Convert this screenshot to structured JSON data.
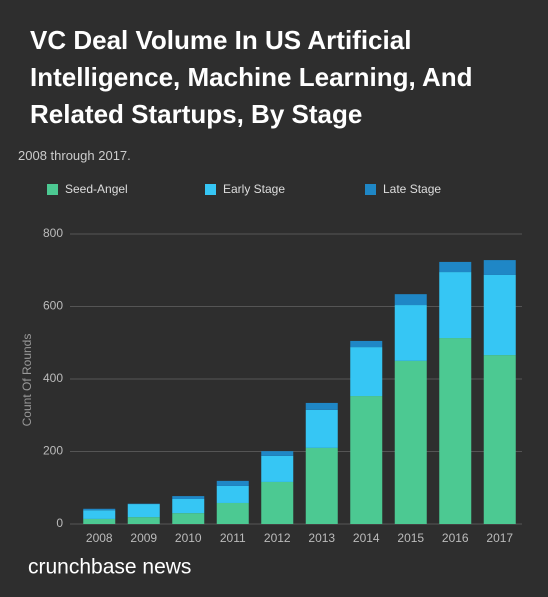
{
  "chart_data": {
    "type": "stacked_bar",
    "title": "VC Deal Volume In US Artificial Intelligence, Machine Learning, And Related Startups, By Stage",
    "subtitle": "2008 through 2017.",
    "y_label": "Count Of Rounds",
    "source": "crunchbase news",
    "categories": [
      "2008",
      "2009",
      "2010",
      "2011",
      "2012",
      "2013",
      "2014",
      "2015",
      "2016",
      "2017"
    ],
    "series": [
      {
        "name": "Seed-Angel",
        "color": "#4cc992",
        "values": [
          14,
          19,
          30,
          58,
          116,
          210,
          353,
          450,
          513,
          466
        ]
      },
      {
        "name": "Early Stage",
        "color": "#36c6f4",
        "values": [
          24,
          36,
          39,
          47,
          72,
          105,
          135,
          154,
          182,
          221
        ]
      },
      {
        "name": "Late Stage",
        "color": "#1f87c6",
        "values": [
          4,
          1,
          8,
          14,
          13,
          19,
          17,
          30,
          28,
          41
        ]
      }
    ],
    "ylim": [
      0,
      800
    ],
    "yticks": [
      0,
      200,
      400,
      600,
      800
    ],
    "grid": true
  }
}
